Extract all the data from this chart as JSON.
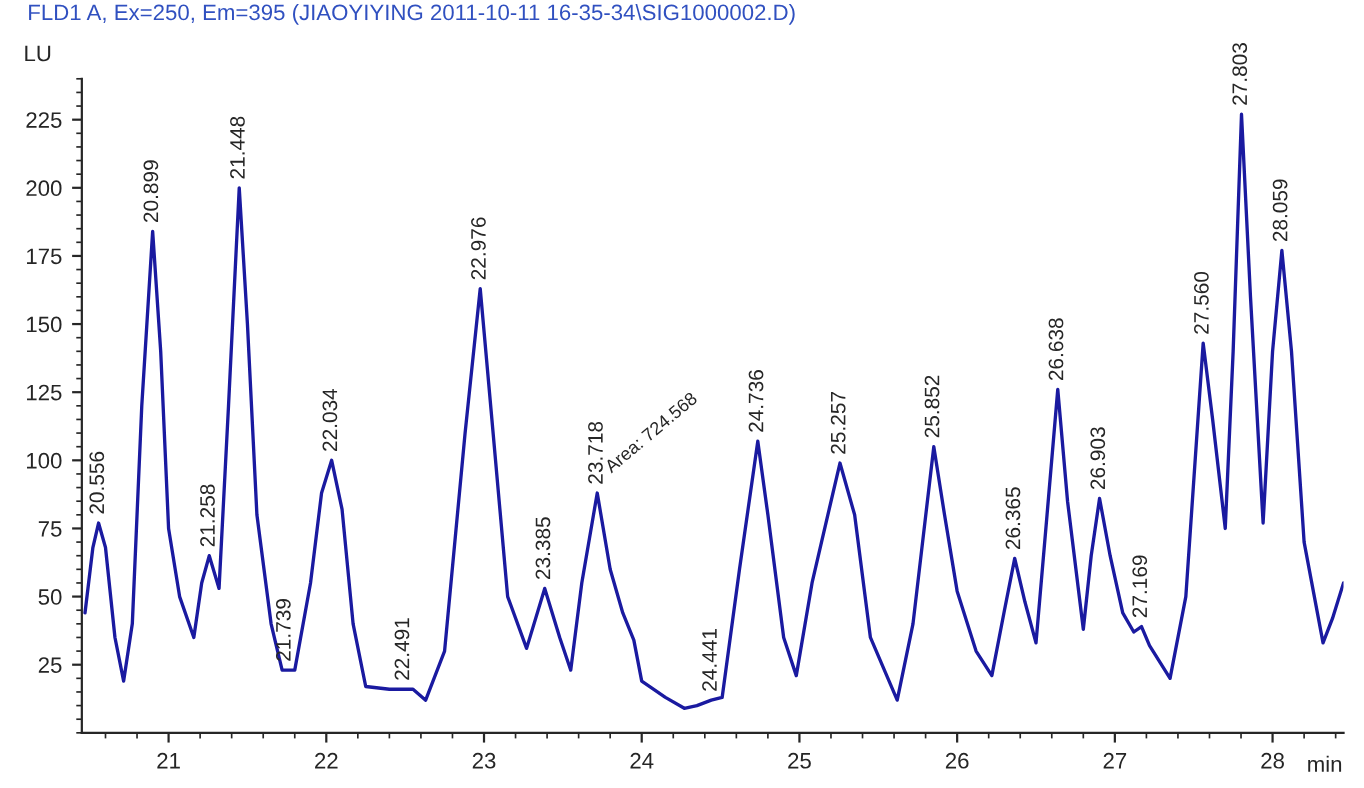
{
  "chart_data": {
    "type": "line",
    "title": "FLD1 A, Ex=250, Em=395 (JIAOYIYING 2011-10-11 16-35-34\\SIG1000002.D)",
    "xlabel": "min",
    "ylabel": "LU",
    "xlim": [
      20.45,
      28.45
    ],
    "xticks": [
      21,
      22,
      23,
      24,
      25,
      26,
      27,
      28
    ],
    "ylim": [
      0,
      240
    ],
    "yticks": [
      25,
      50,
      75,
      100,
      125,
      150,
      175,
      200,
      225
    ],
    "grid": false,
    "legend": false,
    "marker": "none",
    "line_style": "solid",
    "series": [
      {
        "color": "#1a1aa0",
        "x": [
          20.47,
          20.52,
          20.556,
          20.6,
          20.66,
          20.715,
          20.77,
          20.83,
          20.899,
          20.95,
          21.0,
          21.07,
          21.16,
          21.21,
          21.258,
          21.32,
          21.38,
          21.448,
          21.5,
          21.56,
          21.65,
          21.72,
          21.8,
          21.9,
          21.97,
          22.034,
          22.1,
          22.17,
          22.25,
          22.4,
          22.491,
          22.55,
          22.63,
          22.75,
          22.88,
          22.976,
          23.05,
          23.15,
          23.27,
          23.385,
          23.48,
          23.55,
          23.62,
          23.718,
          23.8,
          23.88,
          23.95,
          24.0,
          24.15,
          24.27,
          24.35,
          24.441,
          24.51,
          24.62,
          24.736,
          24.8,
          24.9,
          24.98,
          25.08,
          25.14,
          25.257,
          25.35,
          25.45,
          25.62,
          25.72,
          25.852,
          25.92,
          26.0,
          26.12,
          26.22,
          26.3,
          26.365,
          26.43,
          26.5,
          26.57,
          26.638,
          26.7,
          26.8,
          26.85,
          26.903,
          26.97,
          27.05,
          27.12,
          27.169,
          27.22,
          27.35,
          27.45,
          27.56,
          27.62,
          27.7,
          27.75,
          27.803,
          27.86,
          27.94,
          28.0,
          28.059,
          28.12,
          28.2,
          28.32,
          28.38,
          28.45
        ],
        "values": [
          44,
          68,
          77,
          68,
          35,
          19,
          40,
          120,
          184,
          140,
          75,
          50,
          35,
          55,
          65,
          53,
          120,
          200,
          150,
          80,
          40,
          23,
          23,
          55,
          88,
          100,
          82,
          40,
          17,
          16,
          16,
          16,
          12,
          30,
          110,
          163,
          115,
          50,
          31,
          53,
          35,
          23,
          55,
          88,
          60,
          44,
          34,
          19,
          13,
          9,
          10,
          12,
          13,
          60,
          107,
          80,
          35,
          21,
          55,
          70,
          99,
          80,
          35,
          12,
          40,
          105,
          80,
          52,
          30,
          21,
          45,
          64,
          48,
          33,
          80,
          126,
          85,
          38,
          65,
          86,
          65,
          44,
          37,
          39,
          32,
          20,
          50,
          143,
          115,
          75,
          140,
          227,
          160,
          77,
          140,
          177,
          140,
          70,
          33,
          42,
          55
        ]
      }
    ],
    "annotations": [
      {
        "text": "20.556",
        "x": 20.556,
        "y": 77
      },
      {
        "text": "20.899",
        "x": 20.899,
        "y": 184
      },
      {
        "text": "21.258",
        "x": 21.258,
        "y": 65
      },
      {
        "text": "21.448",
        "x": 21.448,
        "y": 200
      },
      {
        "text": "21.739",
        "x": 21.739,
        "y": 23
      },
      {
        "text": "22.034",
        "x": 22.034,
        "y": 100
      },
      {
        "text": "22.491",
        "x": 22.491,
        "y": 16
      },
      {
        "text": "22.976",
        "x": 22.976,
        "y": 163
      },
      {
        "text": "23.385",
        "x": 23.385,
        "y": 53
      },
      {
        "text": "23.718",
        "x": 23.718,
        "y": 88
      },
      {
        "text": "Area: 724.568",
        "x": 23.718,
        "y": 88
      },
      {
        "text": "24.441",
        "x": 24.441,
        "y": 12
      },
      {
        "text": "24.736",
        "x": 24.736,
        "y": 107
      },
      {
        "text": "25.257",
        "x": 25.257,
        "y": 99
      },
      {
        "text": "25.852",
        "x": 25.852,
        "y": 105
      },
      {
        "text": "26.365",
        "x": 26.365,
        "y": 64
      },
      {
        "text": "26.638",
        "x": 26.638,
        "y": 126
      },
      {
        "text": "26.903",
        "x": 26.903,
        "y": 86
      },
      {
        "text": "27.169",
        "x": 27.169,
        "y": 39
      },
      {
        "text": "27.560",
        "x": 27.56,
        "y": 143
      },
      {
        "text": "27.803",
        "x": 27.803,
        "y": 227
      },
      {
        "text": "28.059",
        "x": 28.059,
        "y": 177
      }
    ]
  }
}
